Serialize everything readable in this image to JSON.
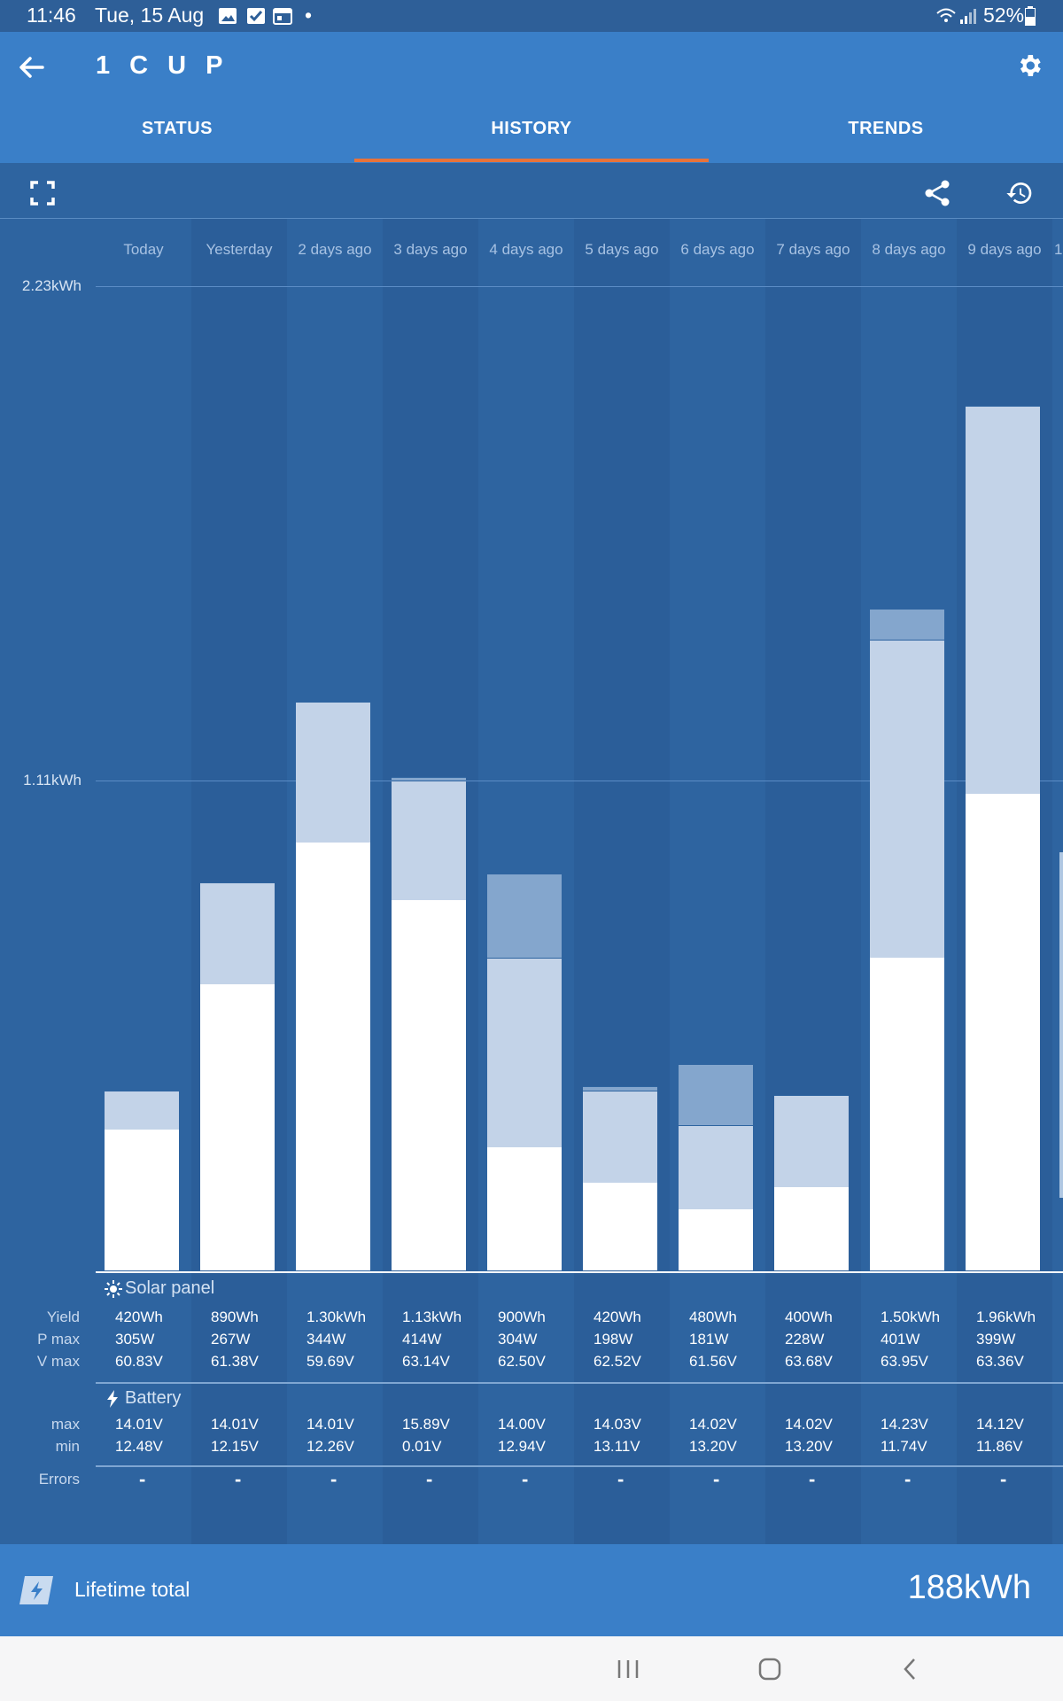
{
  "status_bar": {
    "time": "11:46",
    "date": "Tue, 15 Aug",
    "dot": "•",
    "battery": "52%"
  },
  "app_bar": {
    "title": "1 C U P"
  },
  "tabs": [
    {
      "label": "STATUS"
    },
    {
      "label": "HISTORY"
    },
    {
      "label": "TRENDS"
    }
  ],
  "active_tab": "HISTORY",
  "chart_data": {
    "type": "bar",
    "categories": [
      "Today",
      "Yesterday",
      "2 days ago",
      "3 days ago",
      "4 days ago",
      "5 days ago",
      "6 days ago",
      "7 days ago",
      "8 days ago",
      "9 days ago"
    ],
    "partial_category": "1",
    "y_tick_labels": [
      "2.23kWh",
      "1.11kWh"
    ],
    "ylim": [
      0,
      2.23
    ],
    "series_colors": [
      "#ffffff",
      "#c3d3e8",
      "#84a6cd"
    ],
    "stacks_kwh": [
      [
        0.32,
        0.09,
        0.0
      ],
      [
        0.65,
        0.23,
        0.0
      ],
      [
        0.97,
        0.32,
        0.0
      ],
      [
        0.84,
        0.27,
        0.01
      ],
      [
        0.28,
        0.43,
        0.19
      ],
      [
        0.2,
        0.21,
        0.01
      ],
      [
        0.14,
        0.19,
        0.14
      ],
      [
        0.19,
        0.21,
        0.0
      ],
      [
        0.71,
        0.72,
        0.07
      ],
      [
        1.08,
        0.88,
        0.0
      ]
    ]
  },
  "solar_panel": {
    "title": "Solar panel",
    "labels": [
      "Yield",
      "P max",
      "V max"
    ],
    "yield": [
      "420Wh",
      "890Wh",
      "1.30kWh",
      "1.13kWh",
      "900Wh",
      "420Wh",
      "480Wh",
      "400Wh",
      "1.50kWh",
      "1.96kWh"
    ],
    "pmax": [
      "305W",
      "267W",
      "344W",
      "414W",
      "304W",
      "198W",
      "181W",
      "228W",
      "401W",
      "399W"
    ],
    "vmax": [
      "60.83V",
      "61.38V",
      "59.69V",
      "63.14V",
      "62.50V",
      "62.52V",
      "61.56V",
      "63.68V",
      "63.95V",
      "63.36V"
    ]
  },
  "battery": {
    "title": "Battery",
    "labels": [
      "max",
      "min"
    ],
    "max": [
      "14.01V",
      "14.01V",
      "14.01V",
      "15.89V",
      "14.00V",
      "14.03V",
      "14.02V",
      "14.02V",
      "14.23V",
      "14.12V"
    ],
    "min": [
      "12.48V",
      "12.15V",
      "12.26V",
      "0.01V",
      "12.94V",
      "13.11V",
      "13.20V",
      "13.20V",
      "11.74V",
      "11.86V"
    ]
  },
  "errors": {
    "label": "Errors",
    "values": [
      "-",
      "-",
      "-",
      "-",
      "-",
      "-",
      "-",
      "-",
      "-",
      "-"
    ]
  },
  "lifetime": {
    "label": "Lifetime total",
    "value": "188kWh"
  }
}
